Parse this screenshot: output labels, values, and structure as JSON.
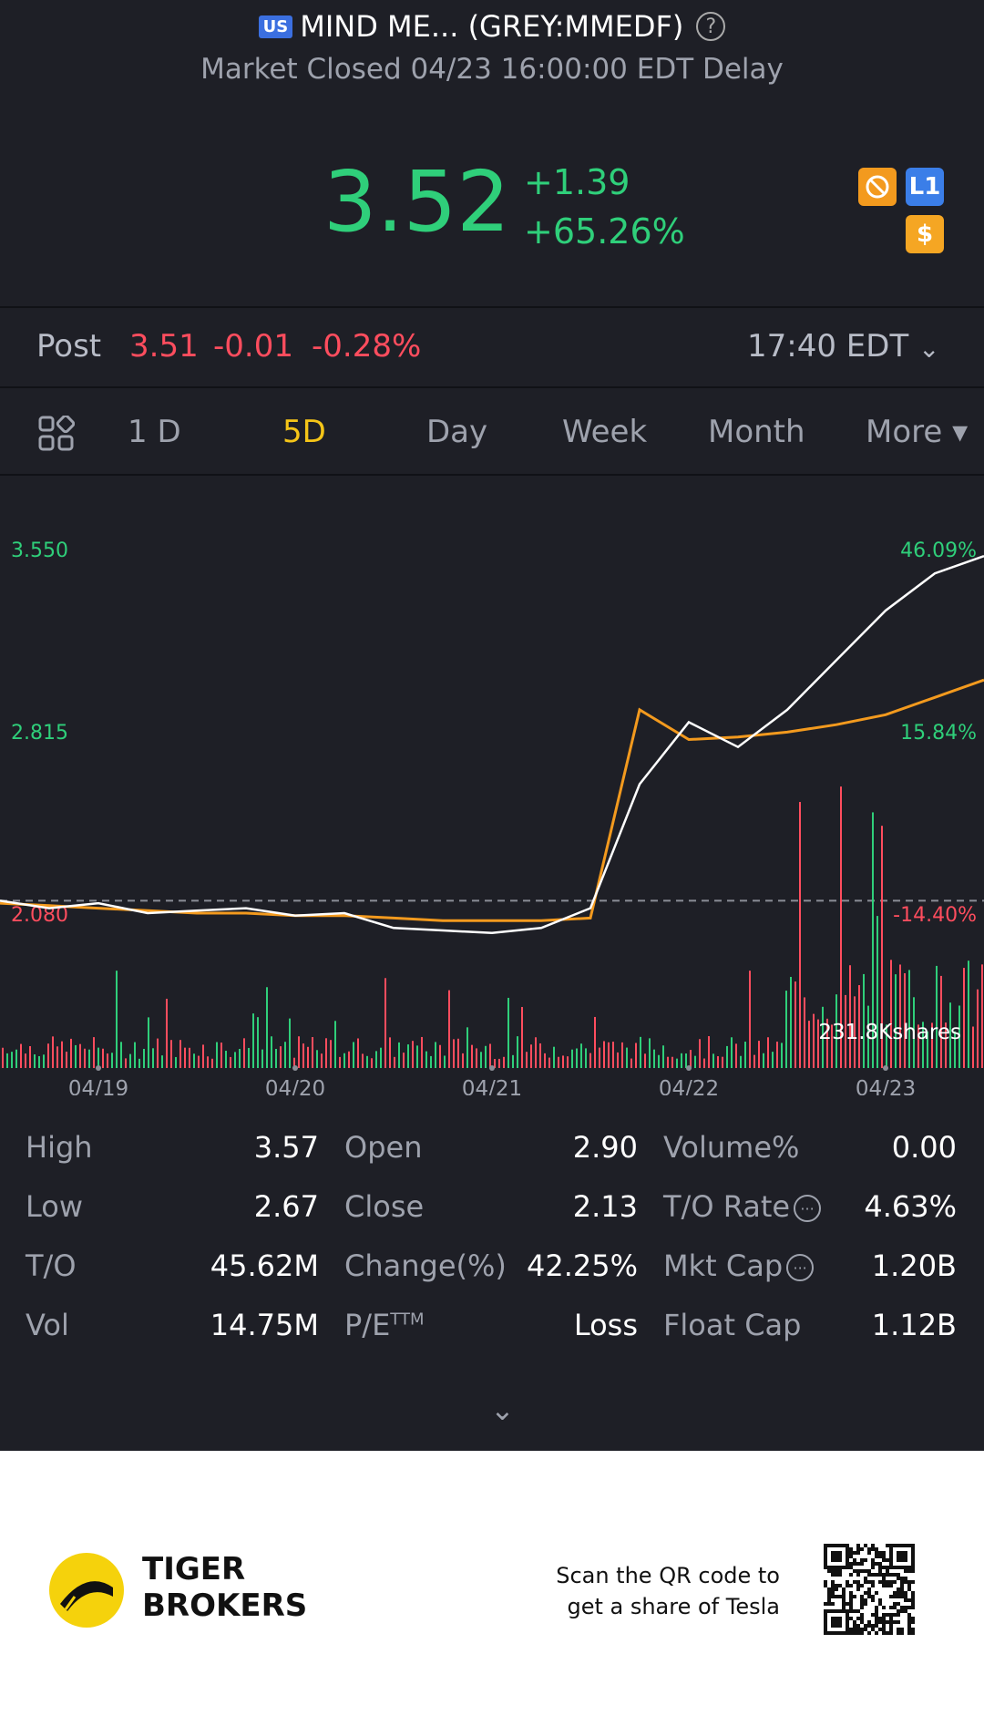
{
  "header": {
    "market_badge": "US",
    "title": "MIND ME... (GREY:MMEDF)",
    "help": "?",
    "status": "Market Closed 04/23 16:00:00 EDT Delay",
    "price": "3.52",
    "change": "+1.39",
    "change_pct": "+65.26%",
    "badges": {
      "l1": "L1",
      "dollar": "$"
    },
    "colors": {
      "up": "#2fcf7a",
      "down": "#ff4d5e",
      "accent": "#f5c518"
    }
  },
  "post_market": {
    "label": "Post",
    "price": "3.51",
    "change": "-0.01",
    "change_pct": "-0.28%",
    "time": "17:40 EDT"
  },
  "tabs": [
    {
      "label": "1 D",
      "active": false
    },
    {
      "label": "5D",
      "active": true
    },
    {
      "label": "Day",
      "active": false
    },
    {
      "label": "Week",
      "active": false
    },
    {
      "label": "Month",
      "active": false
    },
    {
      "label": "More ▾",
      "active": false
    }
  ],
  "chart_data": {
    "type": "line",
    "y_ticks_left": [
      "3.550",
      "2.815",
      "2.080"
    ],
    "y_ticks_right": [
      "46.09%",
      "15.84%",
      "-14.40%"
    ],
    "x_ticks": [
      "04/19",
      "04/20",
      "04/21",
      "04/22",
      "04/23"
    ],
    "volume_label": "231.8Kshares",
    "prev_close": 2.13,
    "ylim": [
      2.08,
      3.55
    ],
    "series": [
      {
        "values": [
          2.13,
          2.1,
          2.12,
          2.08,
          2.09,
          2.1,
          2.07,
          2.08,
          2.02,
          2.01,
          2.0,
          2.02,
          2.1,
          2.6,
          2.85,
          2.75,
          2.9,
          3.1,
          3.3,
          3.45,
          3.52
        ]
      },
      {
        "values": [
          2.12,
          2.11,
          2.1,
          2.09,
          2.08,
          2.08,
          2.07,
          2.07,
          2.06,
          2.05,
          2.05,
          2.05,
          2.06,
          2.9,
          2.78,
          2.79,
          2.81,
          2.84,
          2.88,
          2.95,
          3.02
        ]
      }
    ]
  },
  "stats": [
    {
      "label": "High",
      "value": "3.57"
    },
    {
      "label": "Open",
      "value": "2.90"
    },
    {
      "label": "Volume%",
      "value": "0.00"
    },
    {
      "label": "Low",
      "value": "2.67"
    },
    {
      "label": "Close",
      "value": "2.13"
    },
    {
      "label": "T/O Rate",
      "value": "4.63%"
    },
    {
      "label": "T/O",
      "value": "45.62M"
    },
    {
      "label": "Change(%)",
      "value": "42.25%"
    },
    {
      "label": "Mkt Cap",
      "value": "1.20B"
    },
    {
      "label": "Vol",
      "value": "14.75M"
    },
    {
      "label": "P/E",
      "value": "Loss"
    },
    {
      "label": "Float Cap",
      "value": "1.12B"
    }
  ],
  "pe_superscript": "TTM",
  "footer": {
    "brand_line1": "TIGER",
    "brand_line2": "BROKERS",
    "scan_line1": "Scan the QR code to",
    "scan_line2": "get a share of Tesla"
  }
}
